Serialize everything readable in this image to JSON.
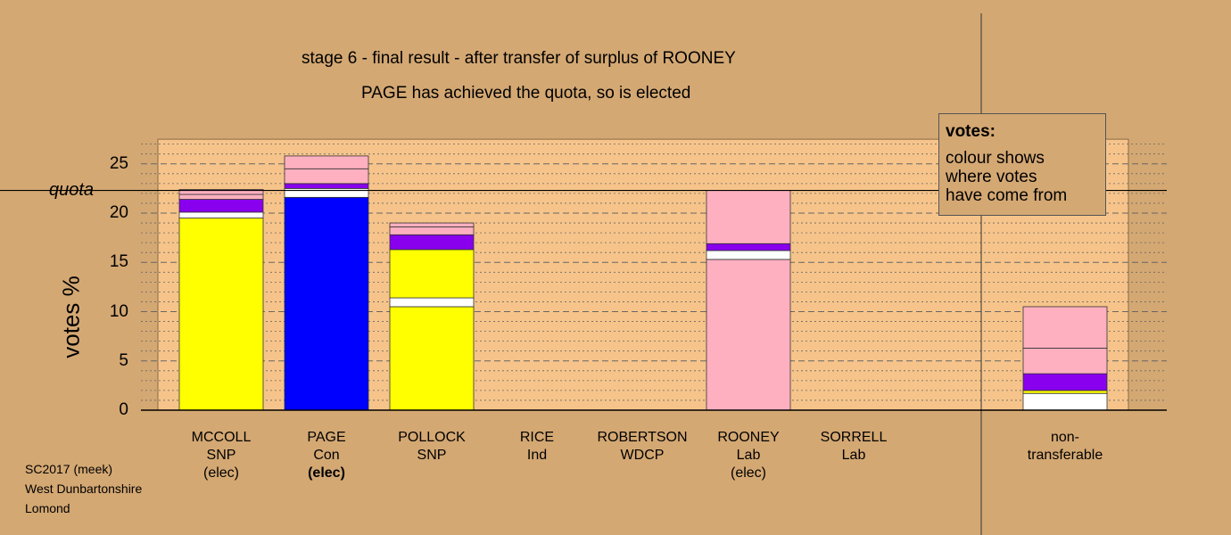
{
  "header": {
    "title": "stage 6 - final result - after transfer of surplus of ROONEY",
    "subtitle": "PAGE has achieved the quota, so is elected"
  },
  "legend": {
    "title": "votes:",
    "lines": [
      "colour shows",
      "where votes",
      "have come from"
    ]
  },
  "footer": {
    "lines": [
      "SC2017 (meek)",
      "West Dunbartonshire",
      "Lomond"
    ]
  },
  "colors": {
    "background": "#d4a873",
    "plot_band": "#f6c48a",
    "SNP": "#ffff00",
    "Con": "#0000ff",
    "Lab": "#ffb0c0",
    "Ind": "#8800ee",
    "white": "#ffffff"
  },
  "chart_data": {
    "type": "bar",
    "stacked": true,
    "title": "stage 6 - final result - after transfer of surplus of ROONEY",
    "ylabel": "votes %",
    "ylim": [
      0,
      27.5
    ],
    "yticks": [
      0,
      5,
      10,
      15,
      20,
      25
    ],
    "quota": 22.3,
    "quota_label": "quota",
    "grid": true,
    "categories": [
      {
        "name": "MCCOLL",
        "party": "SNP",
        "status": "(elec)",
        "bold_status": false
      },
      {
        "name": "PAGE",
        "party": "Con",
        "status": "(elec)",
        "bold_status": true
      },
      {
        "name": "POLLOCK",
        "party": "SNP",
        "status": "",
        "bold_status": false
      },
      {
        "name": "RICE",
        "party": "Ind",
        "status": "",
        "bold_status": false
      },
      {
        "name": "ROBERTSON",
        "party": "WDCP",
        "status": "",
        "bold_status": false
      },
      {
        "name": "ROONEY",
        "party": "Lab",
        "status": "(elec)",
        "bold_status": false
      },
      {
        "name": "SORRELL",
        "party": "Lab",
        "status": "",
        "bold_status": false
      },
      {
        "name": "non-",
        "party": "transferable",
        "status": "",
        "bold_status": false
      }
    ],
    "stacks": [
      [
        {
          "color": "SNP",
          "value": 19.5
        },
        {
          "color": "white",
          "value": 0.6
        },
        {
          "color": "Ind",
          "value": 1.3
        },
        {
          "color": "Lab",
          "value": 0.5
        },
        {
          "color": "Lab",
          "value": 0.5
        }
      ],
      [
        {
          "color": "Con",
          "value": 21.6
        },
        {
          "color": "white",
          "value": 0.9
        },
        {
          "color": "Ind",
          "value": 0.5
        },
        {
          "color": "Lab",
          "value": 1.5
        },
        {
          "color": "Lab",
          "value": 1.3
        }
      ],
      [
        {
          "color": "SNP",
          "value": 10.5
        },
        {
          "color": "white",
          "value": 0.9
        },
        {
          "color": "SNP",
          "value": 4.9
        },
        {
          "color": "Ind",
          "value": 1.5
        },
        {
          "color": "Lab",
          "value": 0.8
        },
        {
          "color": "Lab",
          "value": 0.4
        }
      ],
      [],
      [],
      [
        {
          "color": "Lab",
          "value": 15.3
        },
        {
          "color": "white",
          "value": 0.9
        },
        {
          "color": "Ind",
          "value": 0.7
        },
        {
          "color": "Lab",
          "value": 5.4
        }
      ],
      [],
      [
        {
          "color": "white",
          "value": 1.7
        },
        {
          "color": "SNP",
          "value": 0.3
        },
        {
          "color": "Ind",
          "value": 1.7
        },
        {
          "color": "Lab",
          "value": 2.6
        },
        {
          "color": "Lab",
          "value": 4.2
        }
      ]
    ]
  }
}
